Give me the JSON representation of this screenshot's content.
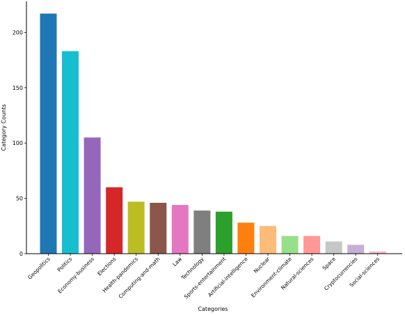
{
  "chart_data": {
    "type": "bar",
    "title": "",
    "xlabel": "Categories",
    "ylabel": "Category Counts",
    "ylim": [
      0,
      228
    ],
    "yticks": [
      0,
      50,
      100,
      150,
      200
    ],
    "grid": false,
    "legend": "none",
    "categories": [
      "Geopolitics",
      "Politics",
      "Economy-business",
      "Elections",
      "Health-pandemics",
      "Computing-and-math",
      "Law",
      "Technology",
      "Sports-entertainment",
      "Artificial-intelligence",
      "Nuclear",
      "Environment-climate",
      "Natural-sciences",
      "Space",
      "Cryptocurrencies",
      "Social-sciences"
    ],
    "values": [
      217,
      183,
      105,
      60,
      47,
      46,
      44,
      39,
      38,
      28,
      25,
      16,
      16,
      11,
      8,
      2
    ],
    "colors": [
      "#1f77b4",
      "#17becf",
      "#9467bd",
      "#d62728",
      "#bcbd22",
      "#8c564b",
      "#e377c2",
      "#7f7f7f",
      "#2ca02c",
      "#ff7f0e",
      "#ffbb78",
      "#98df8a",
      "#ff9896",
      "#c7c7c7",
      "#c5b0d5",
      "#f7b6d2"
    ]
  }
}
